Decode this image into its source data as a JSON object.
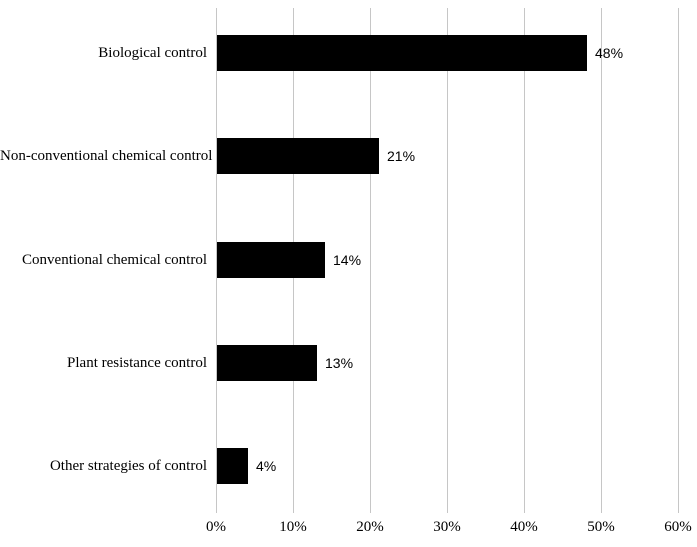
{
  "chart_data": {
    "type": "bar",
    "orientation": "horizontal",
    "title": "",
    "xlabel": "",
    "ylabel": "",
    "categories": [
      "Biological control",
      "Non-conventional chemical control",
      "Conventional chemical control",
      "Plant resistance control",
      "Other strategies of control"
    ],
    "values": [
      48,
      21,
      14,
      13,
      4
    ],
    "value_labels": [
      "48%",
      "21%",
      "14%",
      "13%",
      "4%"
    ],
    "x_tick_labels": [
      "0%",
      "10%",
      "20%",
      "30%",
      "40%",
      "50%",
      "60%"
    ],
    "x_tick_values": [
      0,
      10,
      20,
      30,
      40,
      50,
      60
    ],
    "xlim": [
      0,
      60
    ],
    "grid": "vertical-gridlines",
    "legend": "none",
    "bar_color": "#000000",
    "gridline_color": "#c6c6c6",
    "background_color": "#ffffff",
    "text_color": "#000000"
  }
}
